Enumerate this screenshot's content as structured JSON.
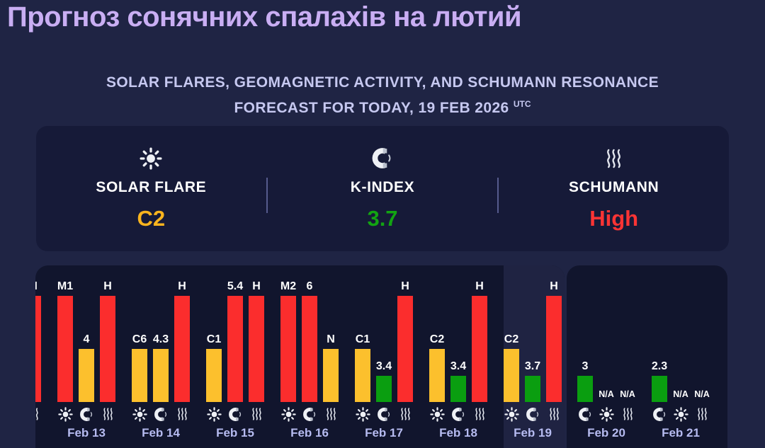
{
  "header": {
    "title": "Прогноз сонячних спалахів на лютий",
    "subtitle_line1": "SOLAR FLARES, GEOMAGNETIC ACTIVITY, AND SCHUMANN RESONANCE",
    "subtitle_line2": "FORECAST FOR TODAY, 19 FEB 2026",
    "subtitle_sup": "UTC"
  },
  "stats": {
    "cards": [
      {
        "icon": "sun-icon",
        "label": "SOLAR FLARE",
        "value": "C2",
        "value_color": "#f9b41e"
      },
      {
        "icon": "magnet-icon",
        "label": "K-INDEX",
        "value": "3.7",
        "value_color": "#12a412"
      },
      {
        "icon": "waves-icon",
        "label": "SCHUMANN",
        "value": "High",
        "value_color": "#fb3434"
      }
    ]
  },
  "palette": {
    "page_bg": "#1f2444",
    "panel_bg": "#11152d",
    "today_highlight": "#1f2342",
    "red": "#fb2d2d",
    "amber": "#fcc02d",
    "green": "#0a9e10",
    "date_color": "#b6bbf0"
  },
  "chart_data": {
    "type": "bar",
    "legend": "per-day bars: solar flare class, k-index, schumann resonance; bar height encodes severity (high/medium/low), N/A = no data",
    "level_heights": {
      "high": 150,
      "medium": 75,
      "low": 37,
      "na": 0,
      "none": 0
    },
    "days": [
      {
        "date": "",
        "partial": true,
        "bars": [
          {
            "level": "none",
            "label": "",
            "icon": "",
            "metric": ""
          },
          {
            "level": "none",
            "label": "",
            "icon": "",
            "metric": ""
          },
          {
            "level": "high",
            "label": "H",
            "icon": "waves-icon",
            "metric": "schumann"
          }
        ]
      },
      {
        "date": "Feb 13",
        "bars": [
          {
            "level": "high",
            "label": "M1",
            "icon": "sun-icon",
            "metric": "solar-flare"
          },
          {
            "level": "medium",
            "label": "4",
            "icon": "magnet-icon",
            "metric": "k-index"
          },
          {
            "level": "high",
            "label": "H",
            "icon": "waves-icon",
            "metric": "schumann"
          }
        ]
      },
      {
        "date": "Feb 14",
        "bars": [
          {
            "level": "medium",
            "label": "C6",
            "icon": "sun-icon",
            "metric": "solar-flare"
          },
          {
            "level": "medium",
            "label": "4.3",
            "icon": "magnet-icon",
            "metric": "k-index"
          },
          {
            "level": "high",
            "label": "H",
            "icon": "waves-icon",
            "metric": "schumann"
          }
        ]
      },
      {
        "date": "Feb 15",
        "bars": [
          {
            "level": "medium",
            "label": "C1",
            "icon": "sun-icon",
            "metric": "solar-flare"
          },
          {
            "level": "high",
            "label": "5.4",
            "icon": "magnet-icon",
            "metric": "k-index"
          },
          {
            "level": "high",
            "label": "H",
            "icon": "waves-icon",
            "metric": "schumann"
          }
        ]
      },
      {
        "date": "Feb 16",
        "bars": [
          {
            "level": "high",
            "label": "M2",
            "icon": "sun-icon",
            "metric": "solar-flare"
          },
          {
            "level": "high",
            "label": "6",
            "icon": "magnet-icon",
            "metric": "k-index"
          },
          {
            "level": "medium",
            "label": "N",
            "icon": "waves-icon",
            "metric": "schumann"
          }
        ]
      },
      {
        "date": "Feb 17",
        "bars": [
          {
            "level": "medium",
            "label": "C1",
            "icon": "sun-icon",
            "metric": "solar-flare"
          },
          {
            "level": "low",
            "label": "3.4",
            "icon": "magnet-icon",
            "metric": "k-index"
          },
          {
            "level": "high",
            "label": "H",
            "icon": "waves-icon",
            "metric": "schumann"
          }
        ]
      },
      {
        "date": "Feb 18",
        "bars": [
          {
            "level": "medium",
            "label": "C2",
            "icon": "sun-icon",
            "metric": "solar-flare"
          },
          {
            "level": "low",
            "label": "3.4",
            "icon": "magnet-icon",
            "metric": "k-index"
          },
          {
            "level": "high",
            "label": "H",
            "icon": "waves-icon",
            "metric": "schumann"
          }
        ]
      },
      {
        "date": "Feb 19",
        "today": true,
        "bars": [
          {
            "level": "medium",
            "label": "C2",
            "icon": "sun-icon",
            "metric": "solar-flare"
          },
          {
            "level": "low",
            "label": "3.7",
            "icon": "magnet-icon",
            "metric": "k-index"
          },
          {
            "level": "high",
            "label": "H",
            "icon": "waves-icon",
            "metric": "schumann"
          }
        ]
      },
      {
        "date": "Feb 20",
        "future": true,
        "bars": [
          {
            "level": "low",
            "label": "3",
            "icon": "magnet-icon",
            "metric": "k-index"
          },
          {
            "level": "na",
            "label": "N/A",
            "icon": "sun-icon",
            "metric": "solar-flare"
          },
          {
            "level": "na",
            "label": "N/A",
            "icon": "waves-icon",
            "metric": "schumann"
          }
        ]
      },
      {
        "date": "Feb 21",
        "future": true,
        "bars": [
          {
            "level": "low",
            "label": "2.3",
            "icon": "magnet-icon",
            "metric": "k-index"
          },
          {
            "level": "na",
            "label": "N/A",
            "icon": "sun-icon",
            "metric": "solar-flare"
          },
          {
            "level": "na",
            "label": "N/A",
            "icon": "waves-icon",
            "metric": "schumann"
          }
        ]
      }
    ]
  }
}
